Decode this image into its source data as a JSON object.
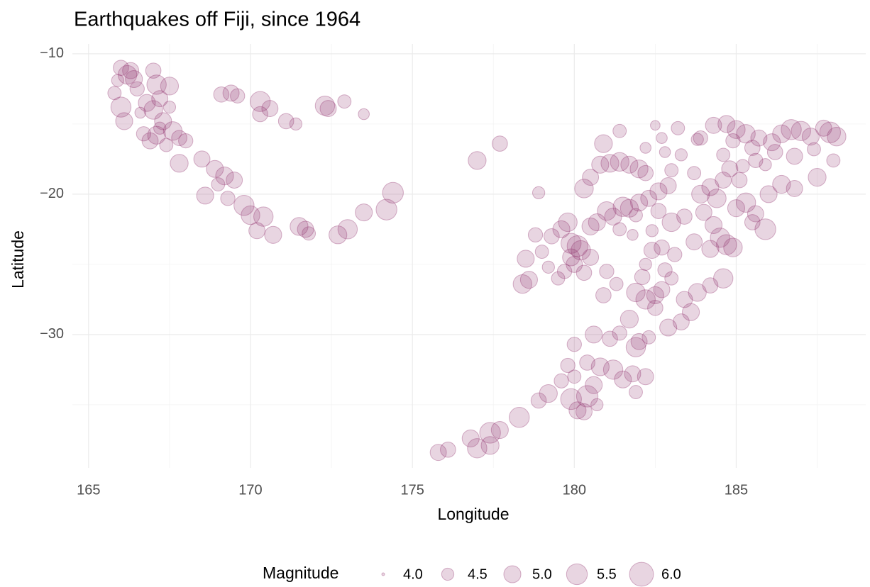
{
  "chart_data": {
    "type": "bubble",
    "title": "Earthquakes off Fiji, since 1964",
    "x_label": "Longitude",
    "y_label": "Latitude",
    "legend_title": "Magnitude",
    "color": "#8e2c6b",
    "grid": true,
    "xlim": [
      164.5,
      189
    ],
    "ylim": [
      -39.5,
      -9.3
    ],
    "xticks": [
      165,
      170,
      175,
      180,
      185
    ],
    "yticks": [
      {
        "value": -10,
        "label": "−10"
      },
      {
        "value": -20,
        "label": "−20"
      },
      {
        "value": -30,
        "label": "−30"
      }
    ],
    "x_minor_grid": [
      167.5,
      172.5,
      177.5,
      182.5,
      187.5
    ],
    "y_minor_grid": [
      -15,
      -25,
      -35
    ],
    "size_lim": [
      4,
      6.4
    ],
    "size_legend": [
      {
        "value": 4,
        "label": "4.0"
      },
      {
        "value": 4.5,
        "label": "4.5"
      },
      {
        "value": 5,
        "label": "5.0"
      },
      {
        "value": 5.5,
        "label": "5.5"
      },
      {
        "value": 6,
        "label": "6.0"
      }
    ],
    "x": [
      166.0,
      166.2,
      166.4,
      165.8,
      166.0,
      166.1,
      166.5,
      166.8,
      167.0,
      167.1,
      167.5,
      167.2,
      167.0,
      167.3,
      167.1,
      166.9,
      167.6,
      167.8,
      168.0,
      167.4,
      167.8,
      166.3,
      165.9,
      166.6,
      167.2,
      166.7,
      167.5,
      168.5,
      168.9,
      169.2,
      169.5,
      169.0,
      168.6,
      169.3,
      169.8,
      170.0,
      170.4,
      170.2,
      170.7,
      171.5,
      171.7,
      171.8,
      172.7,
      173.0,
      173.5,
      174.2,
      174.4,
      169.1,
      169.4,
      169.6,
      170.3,
      170.6,
      170.3,
      171.1,
      171.4,
      172.3,
      172.4,
      172.9,
      173.5,
      177.0,
      177.7,
      178.9,
      175.8,
      176.1,
      176.8,
      177.0,
      177.4,
      177.7,
      177.4,
      178.3,
      178.9,
      179.2,
      179.6,
      179.9,
      180.1,
      180.3,
      180.4,
      180.6,
      180.8,
      181.2,
      181.5,
      181.8,
      182.2,
      181.9,
      180.0,
      180.6,
      181.1,
      181.4,
      181.7,
      182.0,
      182.3,
      181.9,
      180.4,
      179.8,
      180.0,
      180.7,
      181.9,
      182.2,
      182.5,
      182.7,
      182.1,
      182.8,
      183.0,
      182.5,
      183.4,
      183.6,
      183.8,
      184.2,
      184.6,
      183.3,
      182.9,
      182.4,
      182.7,
      183.1,
      182.2,
      178.4,
      178.6,
      178.5,
      179.0,
      179.3,
      179.6,
      179.8,
      179.9,
      180.1,
      180.2,
      179.9,
      180.0,
      179.7,
      180.3,
      179.5,
      180.5,
      181.0,
      180.9,
      181.3,
      179.2,
      178.8,
      180.5,
      180.7,
      181.0,
      181.2,
      181.5,
      181.7,
      182.0,
      182.3,
      182.6,
      182.9,
      181.9,
      181.4,
      181.8,
      182.4,
      180.3,
      180.8,
      181.1,
      181.4,
      181.7,
      182.0,
      182.2,
      180.5,
      180.9,
      181.4,
      182.5,
      182.7,
      183.2,
      183.8,
      183.3,
      182.8,
      182.2,
      183.0,
      183.7,
      182.6,
      183.0,
      183.4,
      183.9,
      184.2,
      184.4,
      184.6,
      184.0,
      184.3,
      184.5,
      184.7,
      184.9,
      184.2,
      183.7,
      185.0,
      185.3,
      185.6,
      185.9,
      185.5,
      186.0,
      186.4,
      186.8,
      185.1,
      184.8,
      185.2,
      185.6,
      184.3,
      184.7,
      185.0,
      185.3,
      185.7,
      186.1,
      186.4,
      186.7,
      187.0,
      187.3,
      187.7,
      187.9,
      188.1,
      188.0,
      187.5,
      186.8,
      186.2,
      185.5,
      184.9,
      184.6,
      185.9,
      187.4,
      183.9
    ],
    "values": [
      -11.0,
      -11.5,
      -11.8,
      -12.8,
      -13.8,
      -14.8,
      -12.5,
      -13.5,
      -11.2,
      -12.2,
      -12.3,
      -13.2,
      -14.0,
      -14.8,
      -15.8,
      -16.2,
      -15.5,
      -16.0,
      -16.2,
      -16.5,
      -17.8,
      -11.2,
      -11.9,
      -14.2,
      -15.3,
      -15.7,
      -13.8,
      -17.5,
      -18.2,
      -18.7,
      -19.0,
      -19.3,
      -20.1,
      -20.3,
      -20.8,
      -21.5,
      -21.6,
      -22.6,
      -22.9,
      -22.3,
      -22.5,
      -22.8,
      -22.9,
      -22.5,
      -21.3,
      -21.1,
      -19.9,
      -12.9,
      -12.8,
      -13.0,
      -13.4,
      -13.9,
      -14.3,
      -14.8,
      -15.0,
      -13.7,
      -13.9,
      -13.4,
      -14.3,
      -17.6,
      -16.4,
      -19.9,
      -38.4,
      -38.2,
      -37.4,
      -38.1,
      -37.0,
      -36.8,
      -37.9,
      -35.9,
      -34.7,
      -34.2,
      -33.3,
      -34.6,
      -35.4,
      -35.5,
      -34.4,
      -33.6,
      -32.3,
      -32.5,
      -33.2,
      -32.8,
      -33.0,
      -34.1,
      -30.7,
      -30.0,
      -30.3,
      -29.9,
      -28.9,
      -30.5,
      -30.2,
      -30.9,
      -32.0,
      -32.2,
      -33.0,
      -35.0,
      -27.0,
      -27.5,
      -27.2,
      -26.8,
      -25.9,
      -25.4,
      -26.0,
      -28.1,
      -27.5,
      -28.4,
      -27.0,
      -26.5,
      -26.0,
      -29.1,
      -29.5,
      -24.0,
      -23.8,
      -24.3,
      -25.0,
      -26.4,
      -26.1,
      -24.6,
      -24.1,
      -23.0,
      -22.5,
      -22.0,
      -23.5,
      -23.7,
      -24.0,
      -24.5,
      -25.0,
      -25.5,
      -25.6,
      -26.0,
      -24.5,
      -25.5,
      -27.2,
      -26.4,
      -25.2,
      -22.9,
      -22.3,
      -22.0,
      -21.2,
      -21.6,
      -20.9,
      -21.0,
      -20.6,
      -20.3,
      -19.8,
      -19.4,
      -21.5,
      -22.5,
      -22.9,
      -22.6,
      -19.6,
      -17.9,
      -17.8,
      -17.7,
      -17.9,
      -18.2,
      -18.5,
      -18.8,
      -16.4,
      -15.5,
      -15.1,
      -16.0,
      -15.3,
      -16.1,
      -17.2,
      -17.0,
      -16.7,
      -18.3,
      -18.5,
      -21.2,
      -22.0,
      -21.6,
      -20.0,
      -19.5,
      -20.3,
      -19.0,
      -21.3,
      -22.2,
      -23.1,
      -23.6,
      -23.8,
      -23.9,
      -23.4,
      -21.0,
      -20.6,
      -21.4,
      -22.5,
      -22.0,
      -20.0,
      -19.3,
      -19.6,
      -19.0,
      -18.2,
      -18.0,
      -17.6,
      -15.1,
      -15.0,
      -15.4,
      -15.7,
      -16.0,
      -16.3,
      -15.7,
      -15.4,
      -15.5,
      -15.9,
      -15.3,
      -15.6,
      -15.9,
      -17.6,
      -18.8,
      -17.3,
      -17.0,
      -16.7,
      -16.2,
      -17.2,
      -17.9,
      -16.8,
      -16.0
    ],
    "sizes": [
      4.8,
      5.2,
      5.0,
      4.6,
      5.4,
      5.0,
      4.7,
      5.0,
      4.8,
      5.3,
      5.1,
      4.9,
      5.2,
      5.0,
      5.1,
      4.9,
      5.2,
      4.8,
      4.7,
      4.6,
      5.1,
      4.9,
      4.5,
      4.4,
      4.5,
      4.7,
      4.5,
      4.9,
      5.0,
      5.1,
      4.9,
      4.6,
      5.0,
      4.7,
      5.4,
      5.2,
      5.3,
      4.9,
      5.0,
      5.1,
      4.9,
      4.6,
      5.1,
      5.3,
      5.0,
      5.5,
      5.5,
      4.8,
      4.9,
      4.7,
      5.4,
      4.9,
      4.8,
      4.8,
      4.5,
      5.3,
      4.9,
      4.6,
      4.4,
      5.1,
      4.8,
      4.5,
      4.9,
      4.8,
      5.0,
      5.3,
      5.5,
      5.0,
      5.1,
      5.4,
      4.8,
      5.1,
      4.7,
      5.5,
      5.0,
      4.9,
      5.6,
      5.0,
      5.1,
      5.3,
      5.0,
      4.9,
      4.9,
      4.6,
      4.7,
      5.0,
      4.8,
      4.7,
      5.1,
      4.9,
      4.6,
      5.3,
      4.8,
      4.7,
      4.6,
      4.5,
      5.2,
      5.3,
      5.0,
      4.9,
      4.8,
      4.7,
      4.6,
      4.8,
      4.9,
      5.0,
      5.1,
      4.8,
      5.3,
      4.9,
      5.0,
      4.9,
      4.8,
      4.7,
      4.5,
      5.2,
      5.0,
      5.0,
      4.6,
      4.8,
      5.0,
      5.2,
      5.4,
      5.5,
      5.3,
      5.0,
      4.9,
      4.7,
      4.8,
      4.6,
      4.9,
      4.7,
      4.8,
      4.6,
      4.5,
      4.7,
      5.0,
      5.0,
      5.2,
      5.0,
      5.3,
      5.1,
      5.0,
      4.9,
      5.0,
      4.9,
      4.6,
      4.6,
      4.4,
      4.5,
      5.2,
      5.0,
      5.1,
      5.2,
      5.0,
      5.1,
      4.8,
      4.9,
      5.1,
      4.6,
      4.3,
      4.4,
      4.6,
      4.5,
      4.5,
      4.4,
      4.4,
      4.6,
      4.6,
      4.8,
      5.2,
      4.8,
      5.1,
      5.0,
      5.2,
      4.9,
      4.9,
      5.0,
      5.3,
      5.4,
      5.2,
      5.0,
      4.9,
      5.0,
      5.3,
      4.9,
      5.5,
      4.8,
      5.0,
      5.1,
      4.9,
      4.8,
      4.9,
      4.6,
      4.7,
      4.9,
      5.0,
      5.1,
      5.2,
      4.9,
      5.0,
      5.1,
      5.4,
      5.3,
      5.0,
      4.9,
      5.5,
      5.2,
      4.6,
      5.1,
      4.9,
      4.8,
      4.8,
      4.7,
      4.6,
      4.5,
      4.6,
      4.7
    ]
  }
}
